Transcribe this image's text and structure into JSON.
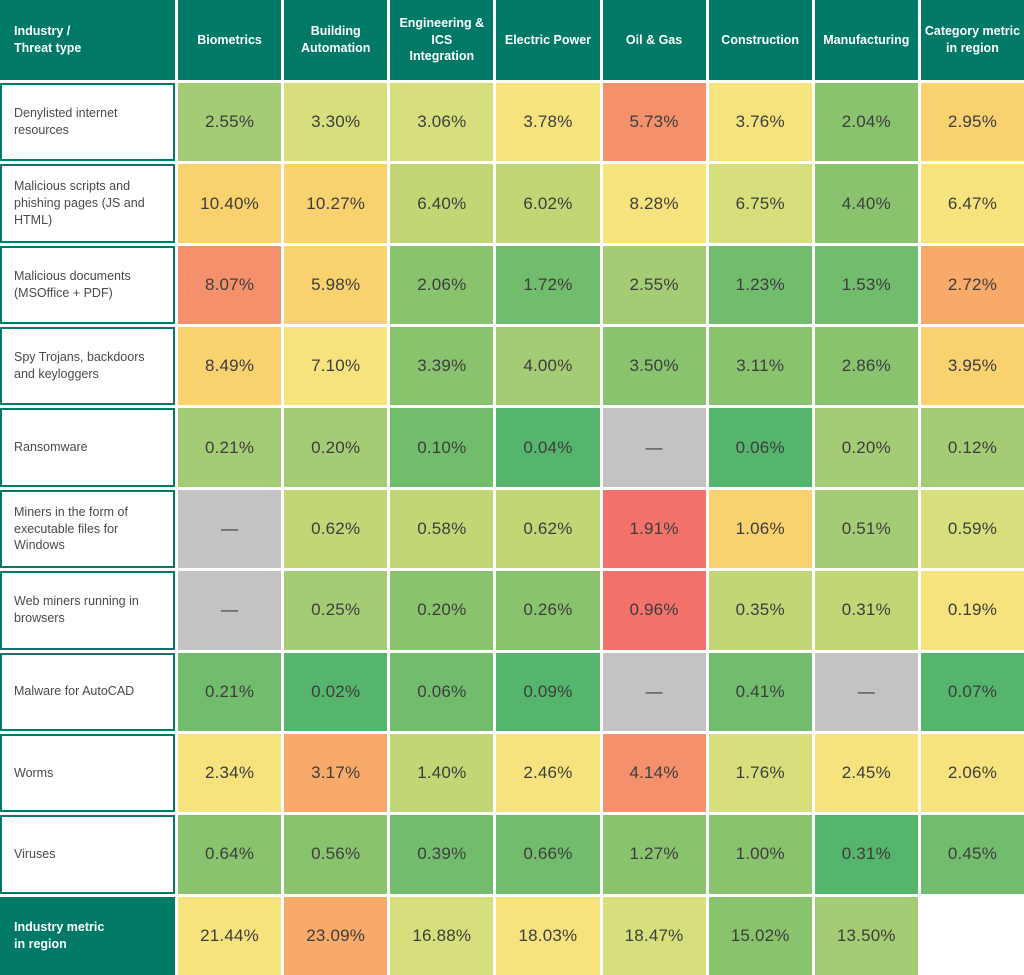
{
  "accent_color": "#007A66",
  "table": {
    "corner_header": "Industry /\nThreat type",
    "column_headers": [
      "Biometrics",
      "Building\nAutomation",
      "Engineering & ICS\nIntegration",
      "Electric Power",
      "Oil & Gas",
      "Construction",
      "Manufacturing",
      "Category metric\nin region"
    ],
    "palette": {
      "green4": "#55B56C",
      "green3": "#72BD6D",
      "green2": "#89C36E",
      "green1": "#A4CC74",
      "yg2": "#C1D776",
      "yg1": "#D6DF7B",
      "yellow": "#F6E37D",
      "gold": "#F9D16E",
      "orange": "#F8AA6A",
      "salmon": "#F4906B",
      "red": "#F4716C",
      "gray": "#C3C3C3",
      "empty": "#FFFFFF"
    },
    "rows": [
      {
        "label": "Denylisted internet resources",
        "values": [
          "2.55%",
          "3.30%",
          "3.06%",
          "3.78%",
          "5.73%",
          "3.76%",
          "2.04%",
          "2.95%"
        ],
        "colors": [
          "green1",
          "yg1",
          "yg1",
          "yellow",
          "salmon",
          "yellow",
          "green2",
          "gold"
        ]
      },
      {
        "label": "Malicious scripts and phishing pages (JS and HTML)",
        "values": [
          "10.40%",
          "10.27%",
          "6.40%",
          "6.02%",
          "8.28%",
          "6.75%",
          "4.40%",
          "6.47%"
        ],
        "colors": [
          "gold",
          "gold",
          "yg2",
          "yg2",
          "yellow",
          "yg1",
          "green2",
          "yellow"
        ]
      },
      {
        "label": "Malicious documents (MSOffice + PDF)",
        "values": [
          "8.07%",
          "5.98%",
          "2.06%",
          "1.72%",
          "2.55%",
          "1.23%",
          "1.53%",
          "2.72%"
        ],
        "colors": [
          "salmon",
          "gold",
          "green2",
          "green3",
          "green1",
          "green3",
          "green3",
          "orange"
        ]
      },
      {
        "label": "Spy Trojans, backdoors and keyloggers",
        "values": [
          "8.49%",
          "7.10%",
          "3.39%",
          "4.00%",
          "3.50%",
          "3.11%",
          "2.86%",
          "3.95%"
        ],
        "colors": [
          "gold",
          "yellow",
          "green2",
          "green1",
          "green2",
          "green2",
          "green2",
          "gold"
        ]
      },
      {
        "label": "Ransomware",
        "values": [
          "0.21%",
          "0.20%",
          "0.10%",
          "0.04%",
          "—",
          "0.06%",
          "0.20%",
          "0.12%"
        ],
        "colors": [
          "green1",
          "green1",
          "green3",
          "green4",
          "gray",
          "green4",
          "green1",
          "green1"
        ]
      },
      {
        "label": "Miners in the form of executable files for Windows",
        "values": [
          "—",
          "0.62%",
          "0.58%",
          "0.62%",
          "1.91%",
          "1.06%",
          "0.51%",
          "0.59%"
        ],
        "colors": [
          "gray",
          "yg2",
          "yg2",
          "yg2",
          "red",
          "gold",
          "green1",
          "yg1"
        ]
      },
      {
        "label": "Web miners running in browsers",
        "values": [
          "—",
          "0.25%",
          "0.20%",
          "0.26%",
          "0.96%",
          "0.35%",
          "0.31%",
          "0.19%"
        ],
        "colors": [
          "gray",
          "green1",
          "green2",
          "green2",
          "red",
          "yg2",
          "yg2",
          "yellow"
        ]
      },
      {
        "label": "Malware for AutoCAD",
        "values": [
          "0.21%",
          "0.02%",
          "0.06%",
          "0.09%",
          "—",
          "0.41%",
          "—",
          "0.07%"
        ],
        "colors": [
          "green3",
          "green4",
          "green3",
          "green4",
          "gray",
          "green3",
          "gray",
          "green4"
        ]
      },
      {
        "label": "Worms",
        "values": [
          "2.34%",
          "3.17%",
          "1.40%",
          "2.46%",
          "4.14%",
          "1.76%",
          "2.45%",
          "2.06%"
        ],
        "colors": [
          "yellow",
          "orange",
          "yg2",
          "yellow",
          "salmon",
          "yg1",
          "yellow",
          "yellow"
        ]
      },
      {
        "label": "Viruses",
        "values": [
          "0.64%",
          "0.56%",
          "0.39%",
          "0.66%",
          "1.27%",
          "1.00%",
          "0.31%",
          "0.45%"
        ],
        "colors": [
          "green2",
          "green2",
          "green3",
          "green3",
          "green2",
          "green2",
          "green4",
          "green3"
        ]
      },
      {
        "label": "Industry metric\nin region",
        "label_style": "teal",
        "values": [
          "21.44%",
          "23.09%",
          "16.88%",
          "18.03%",
          "18.47%",
          "15.02%",
          "13.50%",
          ""
        ],
        "colors": [
          "yellow",
          "orange",
          "yg1",
          "yellow",
          "yg1",
          "green2",
          "green1",
          "empty"
        ]
      }
    ]
  },
  "chart_data": {
    "type": "heatmap",
    "unit": "%",
    "columns": [
      "Biometrics",
      "Building Automation",
      "Engineering & ICS Integration",
      "Electric Power",
      "Oil & Gas",
      "Construction",
      "Manufacturing",
      "Category metric in region"
    ],
    "rows": [
      "Denylisted internet resources",
      "Malicious scripts and phishing pages (JS and HTML)",
      "Malicious documents (MSOffice + PDF)",
      "Spy Trojans, backdoors and keyloggers",
      "Ransomware",
      "Miners in the form of executable files for Windows",
      "Web miners running in browsers",
      "Malware for AutoCAD",
      "Worms",
      "Viruses",
      "Industry metric in region"
    ],
    "values": [
      [
        2.55,
        3.3,
        3.06,
        3.78,
        5.73,
        3.76,
        2.04,
        2.95
      ],
      [
        10.4,
        10.27,
        6.4,
        6.02,
        8.28,
        6.75,
        4.4,
        6.47
      ],
      [
        8.07,
        5.98,
        2.06,
        1.72,
        2.55,
        1.23,
        1.53,
        2.72
      ],
      [
        8.49,
        7.1,
        3.39,
        4.0,
        3.5,
        3.11,
        2.86,
        3.95
      ],
      [
        0.21,
        0.2,
        0.1,
        0.04,
        null,
        0.06,
        0.2,
        0.12
      ],
      [
        null,
        0.62,
        0.58,
        0.62,
        1.91,
        1.06,
        0.51,
        0.59
      ],
      [
        null,
        0.25,
        0.2,
        0.26,
        0.96,
        0.35,
        0.31,
        0.19
      ],
      [
        0.21,
        0.02,
        0.06,
        0.09,
        null,
        0.41,
        null,
        0.07
      ],
      [
        2.34,
        3.17,
        1.4,
        2.46,
        4.14,
        1.76,
        2.45,
        2.06
      ],
      [
        0.64,
        0.56,
        0.39,
        0.66,
        1.27,
        1.0,
        0.31,
        0.45
      ],
      [
        21.44,
        23.09,
        16.88,
        18.03,
        18.47,
        15.02,
        13.5,
        null
      ]
    ],
    "color_scale": "green-yellow-red per row (low to high), gray = no data",
    "legend_position": "none",
    "grid": false
  }
}
